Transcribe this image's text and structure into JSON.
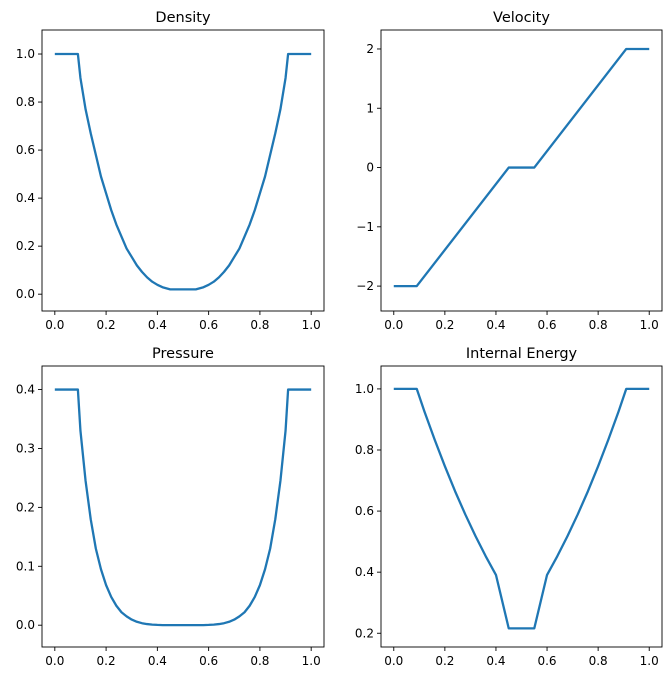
{
  "figure": {
    "line_color": "#1f77b4"
  },
  "chart_data": [
    {
      "type": "line",
      "title": "Density",
      "xlabel": "",
      "ylabel": "",
      "xlim": [
        -0.05,
        1.05
      ],
      "ylim": [
        -0.07,
        1.1
      ],
      "xticks": [
        0.0,
        0.2,
        0.4,
        0.6,
        0.8,
        1.0
      ],
      "xtick_labels": [
        "0.0",
        "0.2",
        "0.4",
        "0.6",
        "0.8",
        "1.0"
      ],
      "yticks": [
        0.0,
        0.2,
        0.4,
        0.6,
        0.8,
        1.0
      ],
      "ytick_labels": [
        "0.0",
        "0.2",
        "0.4",
        "0.6",
        "0.8",
        "1.0"
      ],
      "grid": false,
      "series": [
        {
          "color": "#1f77b4",
          "x": [
            0.0,
            0.09,
            0.1,
            0.12,
            0.14,
            0.16,
            0.18,
            0.2,
            0.22,
            0.24,
            0.26,
            0.28,
            0.3,
            0.32,
            0.34,
            0.36,
            0.38,
            0.4,
            0.42,
            0.45,
            0.55,
            0.58,
            0.6,
            0.62,
            0.64,
            0.66,
            0.68,
            0.7,
            0.72,
            0.74,
            0.76,
            0.78,
            0.8,
            0.82,
            0.84,
            0.86,
            0.88,
            0.9,
            0.91,
            1.0
          ],
          "y": [
            1.0,
            1.0,
            0.9,
            0.77,
            0.67,
            0.58,
            0.49,
            0.42,
            0.35,
            0.29,
            0.24,
            0.19,
            0.155,
            0.12,
            0.093,
            0.07,
            0.052,
            0.039,
            0.029,
            0.02,
            0.02,
            0.029,
            0.039,
            0.052,
            0.07,
            0.093,
            0.12,
            0.155,
            0.19,
            0.24,
            0.29,
            0.35,
            0.42,
            0.49,
            0.58,
            0.67,
            0.77,
            0.9,
            1.0,
            1.0
          ]
        }
      ]
    },
    {
      "type": "line",
      "title": "Velocity",
      "xlabel": "",
      "ylabel": "",
      "xlim": [
        -0.05,
        1.05
      ],
      "ylim": [
        -2.42,
        2.32
      ],
      "xticks": [
        0.0,
        0.2,
        0.4,
        0.6,
        0.8,
        1.0
      ],
      "xtick_labels": [
        "0.0",
        "0.2",
        "0.4",
        "0.6",
        "0.8",
        "1.0"
      ],
      "yticks": [
        -2,
        -1,
        0,
        1,
        2
      ],
      "ytick_labels": [
        "−2",
        "−1",
        "0",
        "1",
        "2"
      ],
      "grid": false,
      "series": [
        {
          "color": "#1f77b4",
          "x": [
            0.0,
            0.09,
            0.45,
            0.55,
            0.91,
            1.0
          ],
          "y": [
            -2.0,
            -2.0,
            0.0,
            0.0,
            2.0,
            2.0
          ]
        }
      ]
    },
    {
      "type": "line",
      "title": "Pressure",
      "xlabel": "",
      "ylabel": "",
      "xlim": [
        -0.05,
        1.05
      ],
      "ylim": [
        -0.037,
        0.44
      ],
      "xticks": [
        0.0,
        0.2,
        0.4,
        0.6,
        0.8,
        1.0
      ],
      "xtick_labels": [
        "0.0",
        "0.2",
        "0.4",
        "0.6",
        "0.8",
        "1.0"
      ],
      "yticks": [
        0.0,
        0.1,
        0.2,
        0.3,
        0.4
      ],
      "ytick_labels": [
        "0.0",
        "0.1",
        "0.2",
        "0.3",
        "0.4"
      ],
      "grid": false,
      "series": [
        {
          "color": "#1f77b4",
          "x": [
            0.0,
            0.09,
            0.1,
            0.12,
            0.14,
            0.16,
            0.18,
            0.2,
            0.22,
            0.24,
            0.26,
            0.28,
            0.3,
            0.32,
            0.34,
            0.36,
            0.38,
            0.4,
            0.42,
            0.45,
            0.55,
            0.58,
            0.6,
            0.62,
            0.64,
            0.66,
            0.68,
            0.7,
            0.72,
            0.74,
            0.76,
            0.78,
            0.8,
            0.82,
            0.84,
            0.86,
            0.88,
            0.9,
            0.91,
            1.0
          ],
          "y": [
            0.4,
            0.4,
            0.33,
            0.245,
            0.18,
            0.13,
            0.095,
            0.068,
            0.048,
            0.033,
            0.022,
            0.015,
            0.0095,
            0.0058,
            0.0034,
            0.0019,
            0.001,
            0.0005,
            0.0002,
            0.0001,
            0.0001,
            0.0002,
            0.0005,
            0.001,
            0.0019,
            0.0034,
            0.0058,
            0.0095,
            0.015,
            0.022,
            0.033,
            0.048,
            0.068,
            0.095,
            0.13,
            0.18,
            0.245,
            0.33,
            0.4,
            0.4
          ]
        }
      ]
    },
    {
      "type": "line",
      "title": "Internal Energy",
      "xlabel": "",
      "ylabel": "",
      "xlim": [
        -0.05,
        1.05
      ],
      "ylim": [
        0.155,
        1.075
      ],
      "xticks": [
        0.0,
        0.2,
        0.4,
        0.6,
        0.8,
        1.0
      ],
      "xtick_labels": [
        "0.0",
        "0.2",
        "0.4",
        "0.6",
        "0.8",
        "1.0"
      ],
      "yticks": [
        0.2,
        0.4,
        0.6,
        0.8,
        1.0
      ],
      "ytick_labels": [
        "0.2",
        "0.4",
        "0.6",
        "0.8",
        "1.0"
      ],
      "grid": false,
      "series": [
        {
          "color": "#1f77b4",
          "x": [
            0.0,
            0.09,
            0.12,
            0.16,
            0.2,
            0.24,
            0.28,
            0.32,
            0.36,
            0.4,
            0.45,
            0.55,
            0.6,
            0.64,
            0.68,
            0.72,
            0.76,
            0.8,
            0.84,
            0.88,
            0.91,
            1.0
          ],
          "y": [
            1.0,
            1.0,
            0.926,
            0.834,
            0.747,
            0.665,
            0.589,
            0.518,
            0.452,
            0.391,
            0.216,
            0.216,
            0.391,
            0.452,
            0.518,
            0.589,
            0.665,
            0.747,
            0.834,
            0.926,
            1.0,
            1.0
          ]
        }
      ]
    }
  ]
}
